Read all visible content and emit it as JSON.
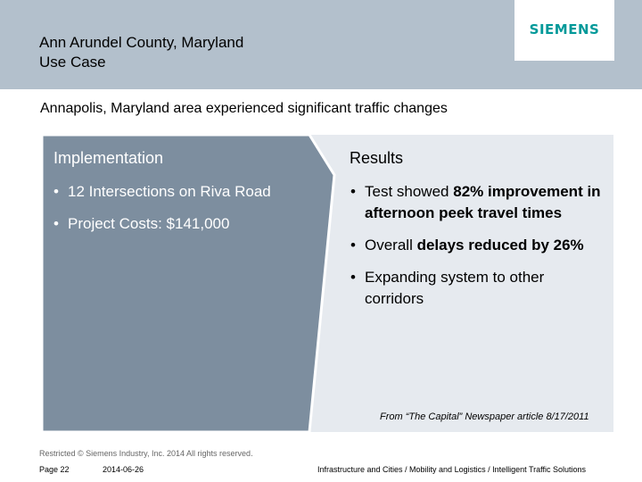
{
  "header": {
    "title_line1": "Ann Arundel County, Maryland",
    "title_line2": "Use Case",
    "logo_text": "SIEMENS"
  },
  "subtitle": "Annapolis, Maryland area experienced significant traffic changes",
  "implementation": {
    "heading": "Implementation",
    "bullets": [
      "12 Intersections on Riva Road",
      "Project Costs: $141,000"
    ]
  },
  "results": {
    "heading": "Results",
    "bullet1_pre": "Test showed ",
    "bullet1_bold": "82% improvement in afternoon peek travel times",
    "bullet2_pre": "Overall ",
    "bullet2_bold": "delays reduced by 26%",
    "bullet3": "Expanding system to other corridors"
  },
  "source": "From “The Capital” Newspaper article 8/17/2011",
  "footer": {
    "restricted": "Restricted © Siemens Industry, Inc. 2014 All rights reserved.",
    "page": "Page 22",
    "date": "2014-06-26",
    "path": "Infrastructure and Cities / Mobility and Logistics / Intelligent Traffic Solutions"
  },
  "colors": {
    "header_bg": "#b3c0cc",
    "left_panel": "#7d8e9f",
    "right_panel": "#e6eaef",
    "brand": "#009999"
  }
}
